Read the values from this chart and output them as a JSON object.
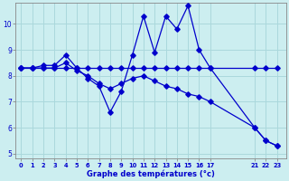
{
  "background_color": "#cceef0",
  "grid_color": "#aad8dc",
  "line_color": "#0000cc",
  "xlabel": "Graphe des températures (°c)",
  "xlabel_color": "#0000cc",
  "ylabel_color": "#0000cc",
  "xlim": [
    -0.5,
    23.8
  ],
  "ylim": [
    4.8,
    10.8
  ],
  "yticks": [
    5,
    6,
    7,
    8,
    9,
    10
  ],
  "xticks": [
    0,
    1,
    2,
    3,
    4,
    5,
    6,
    7,
    8,
    9,
    10,
    11,
    12,
    13,
    14,
    15,
    16,
    17,
    21,
    22,
    23
  ],
  "line_flat_x": [
    0,
    1,
    2,
    3,
    4,
    5,
    6,
    7,
    8,
    9,
    10,
    11,
    12,
    13,
    14,
    15,
    16,
    17,
    21,
    22,
    23
  ],
  "line_flat_y": [
    8.3,
    8.3,
    8.3,
    8.3,
    8.3,
    8.3,
    8.3,
    8.3,
    8.3,
    8.3,
    8.3,
    8.3,
    8.3,
    8.3,
    8.3,
    8.3,
    8.3,
    8.3,
    8.3,
    8.3,
    8.3
  ],
  "line_spiky_x": [
    0,
    1,
    2,
    3,
    4,
    5,
    6,
    7,
    8,
    9,
    10,
    11,
    12,
    13,
    14,
    15,
    16,
    17,
    21,
    22,
    23
  ],
  "line_spiky_y": [
    8.3,
    8.3,
    8.4,
    8.4,
    8.8,
    8.3,
    7.9,
    7.6,
    6.6,
    7.4,
    8.8,
    10.3,
    8.9,
    10.3,
    9.8,
    10.7,
    9.0,
    8.3,
    6.0,
    5.5,
    5.3
  ],
  "line_decline_x": [
    0,
    1,
    2,
    3,
    4,
    5,
    6,
    7,
    8,
    9,
    10,
    11,
    12,
    13,
    14,
    15,
    16,
    17,
    21,
    22,
    23
  ],
  "line_decline_y": [
    8.3,
    8.3,
    8.3,
    8.3,
    8.5,
    8.2,
    8.0,
    7.7,
    7.5,
    7.7,
    7.9,
    8.0,
    7.8,
    7.6,
    7.5,
    7.3,
    7.2,
    7.0,
    6.0,
    5.5,
    5.3
  ]
}
